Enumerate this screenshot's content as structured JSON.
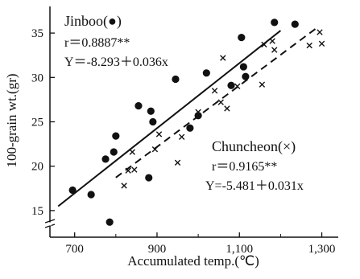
{
  "chart_data": {
    "type": "scatter",
    "title": "",
    "xlabel": "Accumulated temp.(℃)",
    "ylabel": "100-grain  wt.(gr)",
    "xlim": [
      640,
      1340
    ],
    "ylim": [
      12,
      38
    ],
    "x_ticks": [
      700,
      900,
      1100,
      1300
    ],
    "x_tick_labels": [
      "700",
      "900",
      "1,100",
      "1,300"
    ],
    "y_ticks": [
      15,
      20,
      25,
      30,
      35
    ],
    "y_tick_labels": [
      "15",
      "20",
      "25",
      "30",
      "35"
    ],
    "grid": false,
    "series": [
      {
        "name": "Jinboo(●)",
        "marker": "circle",
        "points": [
          [
            695,
            17.3
          ],
          [
            740,
            16.8
          ],
          [
            775,
            20.8
          ],
          [
            785,
            13.7
          ],
          [
            795,
            21.6
          ],
          [
            800,
            23.4
          ],
          [
            855,
            26.8
          ],
          [
            880,
            18.7
          ],
          [
            885,
            26.2
          ],
          [
            890,
            25.0
          ],
          [
            945,
            29.8
          ],
          [
            980,
            24.3
          ],
          [
            1000,
            25.7
          ],
          [
            1020,
            30.5
          ],
          [
            1080,
            29.1
          ],
          [
            1105,
            34.5
          ],
          [
            1110,
            31.2
          ],
          [
            1115,
            30.1
          ],
          [
            1185,
            36.2
          ],
          [
            1235,
            36.0
          ]
        ],
        "regression": {
          "line": "solid",
          "x_range": [
            660,
            1200
          ]
        }
      },
      {
        "name": "Chuncheon(×)",
        "marker": "x",
        "points": [
          [
            820,
            17.8
          ],
          [
            830,
            19.5
          ],
          [
            840,
            21.6
          ],
          [
            845,
            19.6
          ],
          [
            895,
            21.9
          ],
          [
            905,
            23.6
          ],
          [
            950,
            20.4
          ],
          [
            960,
            23.3
          ],
          [
            1000,
            26.1
          ],
          [
            1040,
            28.5
          ],
          [
            1055,
            27.2
          ],
          [
            1060,
            32.2
          ],
          [
            1070,
            26.5
          ],
          [
            1095,
            29.0
          ],
          [
            1155,
            29.2
          ],
          [
            1160,
            33.7
          ],
          [
            1180,
            34.1
          ],
          [
            1185,
            33.1
          ],
          [
            1270,
            33.6
          ],
          [
            1295,
            35.1
          ],
          [
            1300,
            33.8
          ]
        ],
        "regression": {
          "line": "dashed",
          "x_range": [
            800,
            1290
          ]
        }
      }
    ],
    "annotations": {
      "jinboo": {
        "name": "Jinboo(●)",
        "r": "r＝0.8887**",
        "eq": "Y＝-8.293＋0.036x"
      },
      "chuncheon": {
        "name": "Chuncheon(×)",
        "r": "r＝0.9165**",
        "eq": "Y=-5.481＋0.031x"
      }
    }
  }
}
